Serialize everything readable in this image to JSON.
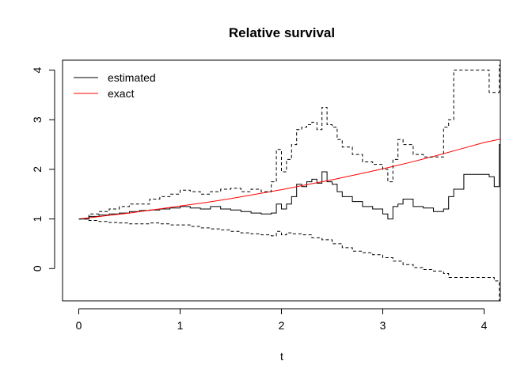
{
  "chart_data": {
    "type": "line",
    "title": "Relative survival",
    "xlabel": "t",
    "ylabel": "",
    "xlim": [
      -0.16,
      4.16
    ],
    "ylim": [
      -0.65,
      4.2
    ],
    "x_ticks": [
      0,
      1,
      2,
      3,
      4
    ],
    "y_ticks": [
      0,
      1,
      2,
      3,
      4
    ],
    "x_tick_labels": [
      "0",
      "1",
      "2",
      "3",
      "4"
    ],
    "y_tick_labels": [
      "0",
      "1",
      "2",
      "3",
      "4"
    ],
    "grid": false,
    "legend": {
      "position": "top-left",
      "entries": [
        {
          "label": "estimated",
          "color": "#000000",
          "dash": "solid"
        },
        {
          "label": "exact",
          "color": "#ff0000",
          "dash": "solid"
        }
      ]
    },
    "series": [
      {
        "name": "estimated",
        "color": "#000000",
        "style": "step-solid",
        "x": [
          0,
          0.1,
          0.2,
          0.3,
          0.4,
          0.5,
          0.6,
          0.7,
          0.8,
          0.9,
          1.0,
          1.1,
          1.2,
          1.3,
          1.4,
          1.5,
          1.6,
          1.7,
          1.8,
          1.9,
          1.95,
          2.0,
          2.05,
          2.1,
          2.15,
          2.2,
          2.25,
          2.3,
          2.35,
          2.4,
          2.45,
          2.5,
          2.55,
          2.6,
          2.7,
          2.8,
          2.9,
          3.0,
          3.05,
          3.1,
          3.15,
          3.2,
          3.3,
          3.4,
          3.5,
          3.6,
          3.65,
          3.7,
          3.8,
          3.9,
          4.0,
          4.05,
          4.1,
          4.15
        ],
        "y": [
          1.0,
          1.05,
          1.08,
          1.1,
          1.12,
          1.15,
          1.17,
          1.18,
          1.2,
          1.22,
          1.25,
          1.22,
          1.2,
          1.25,
          1.2,
          1.18,
          1.15,
          1.12,
          1.1,
          1.12,
          1.3,
          1.2,
          1.3,
          1.45,
          1.7,
          1.65,
          1.75,
          1.8,
          1.72,
          1.95,
          1.75,
          1.7,
          1.55,
          1.45,
          1.35,
          1.25,
          1.2,
          1.1,
          1.0,
          1.25,
          1.3,
          1.4,
          1.25,
          1.22,
          1.15,
          1.2,
          1.45,
          1.6,
          1.9,
          1.9,
          1.9,
          1.85,
          1.65,
          2.5
        ]
      },
      {
        "name": "exact",
        "color": "#ff0000",
        "style": "smooth",
        "x": [
          0,
          0.25,
          0.5,
          0.75,
          1.0,
          1.25,
          1.5,
          1.75,
          2.0,
          2.25,
          2.5,
          2.75,
          3.0,
          3.25,
          3.5,
          3.75,
          4.0,
          4.16
        ],
        "y": [
          1.0,
          1.06,
          1.12,
          1.19,
          1.26,
          1.33,
          1.41,
          1.5,
          1.59,
          1.69,
          1.79,
          1.9,
          2.01,
          2.13,
          2.26,
          2.4,
          2.54,
          2.61
        ]
      },
      {
        "name": "",
        "color": "#000000",
        "style": "step-dashed",
        "x": [
          0,
          0.1,
          0.2,
          0.3,
          0.4,
          0.5,
          0.6,
          0.7,
          0.8,
          0.9,
          1.0,
          1.1,
          1.2,
          1.3,
          1.4,
          1.5,
          1.6,
          1.7,
          1.8,
          1.9,
          1.95,
          2.0,
          2.05,
          2.1,
          2.15,
          2.2,
          2.25,
          2.3,
          2.35,
          2.4,
          2.45,
          2.5,
          2.55,
          2.6,
          2.7,
          2.8,
          2.9,
          3.0,
          3.05,
          3.1,
          3.15,
          3.2,
          3.3,
          3.4,
          3.5,
          3.6,
          3.65,
          3.7,
          3.8,
          3.9,
          4.0,
          4.05,
          4.1,
          4.15
        ],
        "y": [
          1.0,
          1.1,
          1.15,
          1.2,
          1.25,
          1.3,
          1.3,
          1.4,
          1.45,
          1.5,
          1.58,
          1.55,
          1.5,
          1.55,
          1.6,
          1.62,
          1.55,
          1.6,
          1.55,
          1.75,
          2.4,
          1.95,
          2.2,
          2.5,
          2.8,
          2.85,
          2.9,
          2.95,
          2.8,
          3.25,
          2.9,
          2.85,
          2.6,
          2.45,
          2.3,
          2.15,
          2.1,
          2.0,
          1.75,
          2.2,
          2.6,
          2.5,
          2.3,
          2.25,
          2.25,
          2.85,
          3.0,
          4.0,
          4.0,
          4.0,
          4.0,
          3.55,
          3.55,
          4.1
        ]
      },
      {
        "name": "",
        "color": "#000000",
        "style": "step-dashed",
        "x": [
          0,
          0.1,
          0.2,
          0.3,
          0.4,
          0.5,
          0.6,
          0.7,
          0.8,
          0.9,
          1.0,
          1.1,
          1.2,
          1.3,
          1.4,
          1.5,
          1.6,
          1.7,
          1.8,
          1.9,
          1.95,
          2.0,
          2.05,
          2.1,
          2.2,
          2.3,
          2.4,
          2.5,
          2.6,
          2.7,
          2.8,
          2.9,
          3.0,
          3.1,
          3.2,
          3.3,
          3.4,
          3.5,
          3.6,
          3.65,
          3.7,
          3.8,
          3.9,
          4.0,
          4.05,
          4.1,
          4.15
        ],
        "y": [
          1.0,
          0.97,
          0.95,
          0.93,
          0.92,
          0.9,
          0.9,
          0.92,
          0.9,
          0.88,
          0.88,
          0.85,
          0.82,
          0.8,
          0.78,
          0.75,
          0.72,
          0.7,
          0.68,
          0.66,
          0.75,
          0.68,
          0.72,
          0.7,
          0.68,
          0.62,
          0.58,
          0.5,
          0.42,
          0.35,
          0.32,
          0.28,
          0.22,
          0.15,
          0.08,
          0.02,
          -0.02,
          -0.05,
          -0.1,
          -0.18,
          -0.18,
          -0.18,
          -0.18,
          -0.18,
          -0.18,
          -0.25,
          -0.65
        ]
      }
    ]
  }
}
